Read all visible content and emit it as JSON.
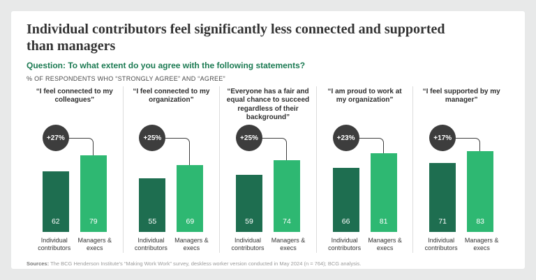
{
  "header": {
    "title": "Individual contributors feel significantly less connected and supported than managers",
    "question": "Question: To what extent do you agree with the following statements?",
    "subtitle": "% OF RESPONDENTS WHO “STRONGLY AGREE” AND “AGREE”"
  },
  "chart_data": {
    "type": "bar",
    "title": "Individual contributors feel significantly less connected and supported than managers",
    "ylabel": "% of respondents who strongly agree and agree",
    "ylim": [
      0,
      100
    ],
    "grid": false,
    "series_labels": [
      "Individual contributors",
      "Managers & execs"
    ],
    "colors": {
      "individual": "#1e6e50",
      "managers": "#2eb872",
      "badge": "#3d3d3d"
    },
    "panels": [
      {
        "statement": "“I feel connected to my colleagues”",
        "individual": 62,
        "managers": 79,
        "delta": "+27%"
      },
      {
        "statement": "“I feel connected to my organization”",
        "individual": 55,
        "managers": 69,
        "delta": "+25%"
      },
      {
        "statement": "“Everyone has a fair and equal chance to succeed regardless of their background”",
        "individual": 59,
        "managers": 74,
        "delta": "+25%"
      },
      {
        "statement": "“I am proud to work at my organization”",
        "individual": 66,
        "managers": 81,
        "delta": "+23%"
      },
      {
        "statement": "“I feel supported by my manager”",
        "individual": 71,
        "managers": 83,
        "delta": "+17%"
      }
    ]
  },
  "footer": {
    "sources_label": "Sources:",
    "sources_text": "The BCG Henderson Institute’s “Making Work Work” survey, deskless worker version conducted in May 2024 (n = 764); BCG analysis."
  }
}
